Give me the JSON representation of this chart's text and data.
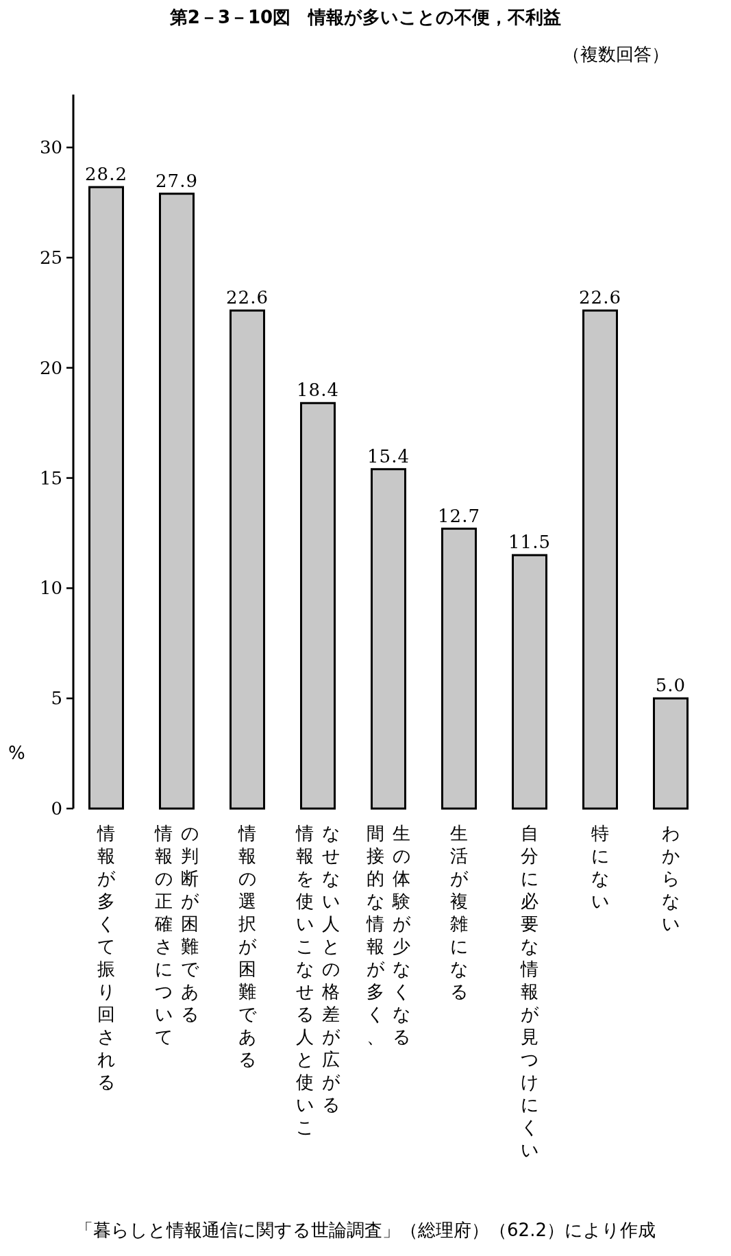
{
  "chart_data": {
    "type": "bar",
    "title": "第2－3－10図　情報が多いことの不便，不利益",
    "subtitle": "（複数回答）",
    "ylabel": "%",
    "categories": [
      "情報が多くて振り回される",
      "情報の正確さについての判断が困難である",
      "情報の選択が困難である",
      "情報を使いこなせる人と使いこなせない人との格差が広がる",
      "間接的な情報が多く、生の体験が少なくなる",
      "生活が複雑になる",
      "自分に必要な情報が見つけにくい",
      "特にない",
      "わからない"
    ],
    "values": [
      28.2,
      27.9,
      22.6,
      18.4,
      15.4,
      12.7,
      11.5,
      22.6,
      5.0
    ],
    "value_labels": [
      "28.2",
      "27.9",
      "22.6",
      "18.4",
      "15.4",
      "12.7",
      "11.5",
      "22.6",
      "5.0"
    ],
    "color": "#c8c8c8",
    "ylim": [
      0,
      32.4
    ],
    "yticks": [
      0,
      5,
      10,
      15,
      20,
      25,
      30
    ],
    "annotations": [
      "「暮らしと情報通信に関する世論調査」（総理府）（62.2）により作成"
    ]
  }
}
